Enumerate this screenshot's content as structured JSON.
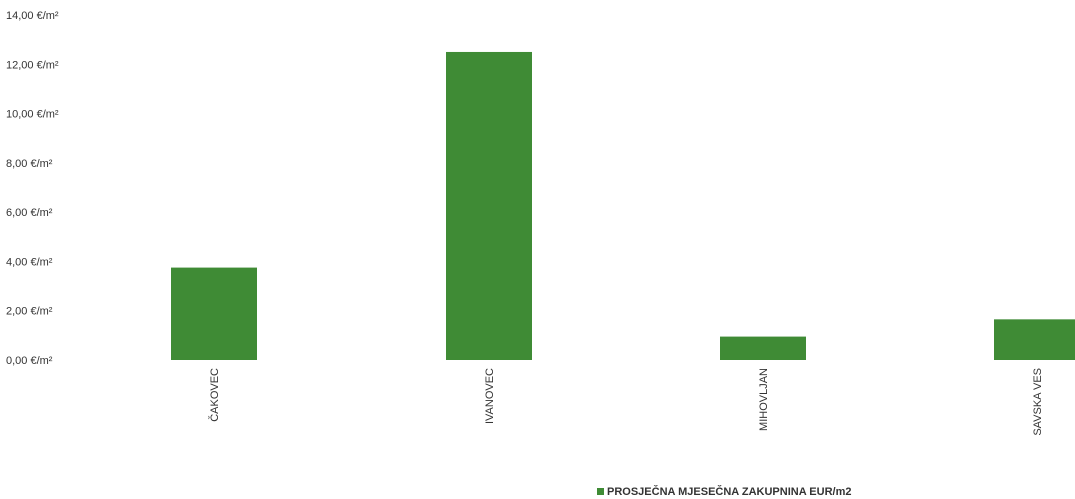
{
  "chart_data": {
    "type": "bar",
    "categories": [
      "ČAKOVEC",
      "IVANOVEC",
      "MIHOVLJAN",
      "SAVSKA VES"
    ],
    "series": [
      {
        "name": "PROSJEČNA MJESEČNA ZAKUPNINA EUR/m2",
        "values": [
          3.75,
          12.5,
          0.95,
          1.65
        ],
        "color": "#3f8b35"
      }
    ],
    "y_ticks": [
      0,
      2,
      4,
      6,
      8,
      10,
      12,
      14
    ],
    "y_tick_labels": [
      "0,00 €/m²",
      "2,00 €/m²",
      "4,00 €/m²",
      "6,00 €/m²",
      "8,00 €/m²",
      "10,00 €/m²",
      "12,00 €/m²",
      "14,00 €/m²"
    ],
    "ylim": [
      0,
      14
    ],
    "grid": false,
    "legend": "bottom-center"
  }
}
